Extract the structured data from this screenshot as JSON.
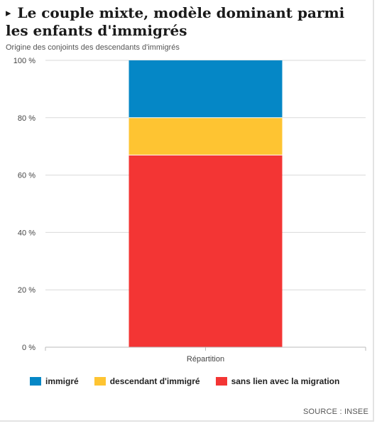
{
  "header": {
    "title_marker": "▸",
    "title": "Le couple mixte, modèle dominant parmi les enfants d'immigrés",
    "subtitle": "Origine des conjoints des descendants d'immigrés"
  },
  "footer": {
    "source": "SOURCE : INSEE"
  },
  "chart_data": {
    "type": "bar",
    "stacked": true,
    "categories": [
      "Répartition"
    ],
    "series": [
      {
        "name": "sans lien avec la migration",
        "values": [
          67
        ],
        "color": "#f33534"
      },
      {
        "name": "descendant d'immigré",
        "values": [
          13
        ],
        "color": "#fec432"
      },
      {
        "name": "immigré",
        "values": [
          20
        ],
        "color": "#0587c6"
      }
    ],
    "legend_order": [
      "immigré",
      "descendant d'immigré",
      "sans lien avec la migration"
    ],
    "legend": {
      "placement": "bottom"
    },
    "ylim": [
      0,
      100
    ],
    "yticks": [
      0,
      20,
      40,
      60,
      80,
      100
    ],
    "ytick_labels": [
      "0 %",
      "20 %",
      "40 %",
      "60 %",
      "80 %",
      "100 %"
    ],
    "grid": true,
    "colors": {
      "grid": "#d9d9d9",
      "axis": "#bbbbbb"
    }
  }
}
